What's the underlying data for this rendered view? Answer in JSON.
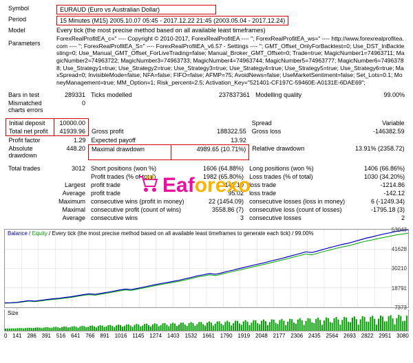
{
  "symbol_label": "Symbol",
  "symbol_value": "EURAUD (Euro vs Australian Dollar)",
  "period_label": "Period",
  "period_value": "15 Minutes (M15) 2005.10.07 05:45 - 2017.12.22 21:45 (2003.05.04 - 2017.12.24)",
  "model_label": "Model",
  "model_value": "Every tick (the most precise method based on all available least timeframes)",
  "params_label": "Parameters",
  "params_text": "ForexRealProfitEA_c=\" ---- Copyright © 2010-2017, ForexRealProfitEA ---- \"; ForexRealProfitEA_ws=\" ---- http://www.forexrealprofitea.com ---- \"; ForexRealProfitEA_S=\" ---- ForexRealProfitEA_v6.57 - Settings ---- \"; GMT_Offset_OnlyForBacktest=0; Use_DST_InBacktesting=0; Use_Manual_GMT_Offset_ForLiveTrading=false; Manual_Broker_GMT_Offset=0; Trade=true; MagicNumber1=74963711; MagicNumber2=74963722; MagicNumber3=74963733; MagicNumber4=74963744; MagicNumber5=74963777; MagicNumber6=74963788; Use_Strategy1=true; Use_Strategy2=true; Use_Strategy3=true; Use_Strategy4=true; Use_Strategy5=true; Use_Strategy6=true; MaxSpread=0; InvisibleMode=false; NFA=false; FIFO=false; AFMP=75; AvoidNews=false; UseMarketSentiment=false; Set_Lots=0.1; MoneyManagement=true; MM_Option=1; Risk_percent=2.5; Activation_Key=\"521401-CF197C-59460E-A0131E-6DAE69\";",
  "bars_label": "Bars in test",
  "bars_val": "289331",
  "ticks_label": "Ticks modelled",
  "ticks_val": "237837361",
  "modq_label": "Modelling quality",
  "modq_val": "99.00%",
  "mismatch_label": "Mismatched charts errors",
  "mismatch_val": "0",
  "init_dep_label": "Initial deposit",
  "init_dep_val": "10000.00",
  "spread_label": "Spread",
  "spread_val": "Variable",
  "net_profit_label": "Total net profit",
  "net_profit_val": "41939.96",
  "gross_p_label": "Gross profit",
  "gross_p_val": "188322.55",
  "gross_l_label": "Gross loss",
  "gross_l_val": "-146382.59",
  "pf_label": "Profit factor",
  "pf_val": "1.29",
  "ep_label": "Expected payoff",
  "ep_val": "13.92",
  "abs_dd_label": "Absolute drawdown",
  "abs_dd_val": "448.20",
  "max_dd_label": "Maximal drawdown",
  "max_dd_val": "4989.65 (10.71%)",
  "rel_dd_label": "Relative drawdown",
  "rel_dd_val": "13.91% (2358.72)",
  "tt_label": "Total trades",
  "tt_val": "3012",
  "short_label": "Short positions (won %)",
  "short_val": "1606 (64.88%)",
  "long_label": "Long positions (won %)",
  "long_val": "1406 (66.86%)",
  "pt_label": "Profit trades (% of total)",
  "pt_val": "1982 (65.80%)",
  "lt_label": "Loss trades (% of total)",
  "lt_val": "1030 (34.20%)",
  "largest_label": "Largest",
  "largest_p_label": "profit trade",
  "largest_p_val": "1142.10",
  "largest_l_label": "loss trade",
  "largest_l_val": "-1214.86",
  "avg_label": "Average",
  "avg_p_label": "profit trade",
  "avg_p_val": "95.02",
  "avg_l_label": "loss trade",
  "avg_l_val": "-142.12",
  "max_label": "Maximum",
  "max_w_label": "consecutive wins (profit in money)",
  "max_w_val": "22 (1454.09)",
  "max_l_label": "consecutive losses (loss in money)",
  "max_l_val": "6 (-1249.34)",
  "maxc_label": "Maximal",
  "maxc_w_label": "consecutive profit (count of wins)",
  "maxc_w_val": "3558.86 (7)",
  "maxc_l_label": "consecutive loss (count of losses)",
  "maxc_l_val": "-1795.18 (3)",
  "avgc_label": "Average",
  "avgc_w_label": "consecutive wins",
  "avgc_w_val": "3",
  "avgc_l_label": "consecutive losses",
  "avgc_l_val": "2",
  "chart_title_prefix": "Balance / ",
  "chart_title_equity": "Equity",
  "chart_title_suffix": " / Every tick (the most precise method based on all available least timeframes to generate each tick) / 99.00%",
  "chart": {
    "ylim": [
      7373,
      53047
    ],
    "yticks": [
      53047,
      41628,
      30210,
      18791,
      7373
    ],
    "xticks": [
      "0",
      "141",
      "286",
      "391",
      "516",
      "641",
      "766",
      "891",
      "1016",
      "1145",
      "1274",
      "1403",
      "1532",
      "1661",
      "1790",
      "1919",
      "2048",
      "2177",
      "2306",
      "2435",
      "2564",
      "2693",
      "2822",
      "2951",
      "3080"
    ],
    "balance_color": "#0000c0",
    "equity_color": "#00a000",
    "grid_color": "#d8d8d8",
    "bg_color": "#ffffff",
    "balance": [
      10000,
      10100,
      10300,
      10800,
      11300,
      11000,
      11500,
      12000,
      12400,
      12700,
      13200,
      13600,
      14200,
      14800,
      15300,
      15000,
      15600,
      16200,
      16800,
      17500,
      18100,
      17800,
      18500,
      19200,
      20000,
      20700,
      21400,
      22000,
      22700,
      23300,
      24200,
      25000,
      25900,
      26500,
      27200,
      26800,
      27600,
      28500,
      29300,
      30200,
      31000,
      31900,
      32700,
      33500,
      34400,
      35300,
      36100,
      37100,
      38000,
      39000,
      40000,
      39600,
      40500,
      41500,
      42500,
      43400,
      44300,
      45000,
      46000,
      47000,
      48000,
      48800,
      49700,
      50500,
      51200,
      52000,
      52500,
      53000
    ],
    "equity": [
      9800,
      9900,
      10100,
      10500,
      11000,
      10700,
      11100,
      11600,
      12000,
      12300,
      12800,
      13200,
      13800,
      14400,
      14800,
      14500,
      15100,
      15700,
      16300,
      17000,
      17600,
      17300,
      18000,
      18700,
      19400,
      20100,
      20800,
      21400,
      22100,
      22700,
      23500,
      24300,
      25200,
      25800,
      26500,
      26000,
      26800,
      27700,
      28500,
      29300,
      30100,
      31000,
      31800,
      32600,
      33400,
      34300,
      35100,
      36000,
      36900,
      37800,
      38700,
      38200,
      39200,
      40200,
      41100,
      42000,
      42800,
      43500,
      44400,
      45400,
      46300,
      47000,
      47800,
      48500,
      49200,
      49900,
      50400,
      51000
    ]
  },
  "size_label": "Size",
  "watermark": "Eaforexo"
}
